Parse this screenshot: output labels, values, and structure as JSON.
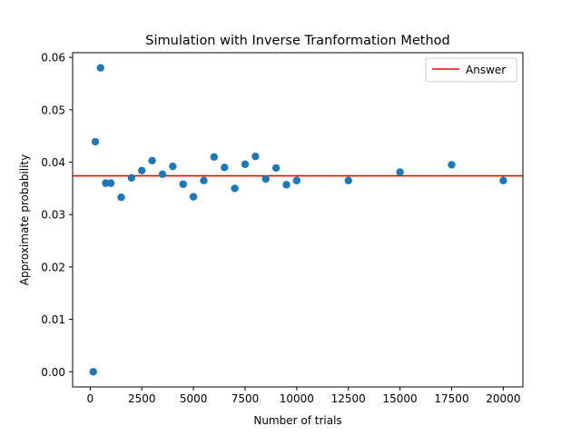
{
  "chart_data": {
    "type": "scatter",
    "title": "Simulation with Inverse Tranformation Method",
    "xlabel": "Number of trials",
    "ylabel": "Approximate probability",
    "xlim": [
      -850,
      20950
    ],
    "ylim": [
      -0.0029,
      0.0609
    ],
    "xticks": [
      0,
      2500,
      5000,
      7500,
      10000,
      12500,
      15000,
      17500,
      20000
    ],
    "xtick_labels": [
      "0",
      "2500",
      "5000",
      "7500",
      "10000",
      "12500",
      "15000",
      "17500",
      "20000"
    ],
    "yticks": [
      0.0,
      0.01,
      0.02,
      0.03,
      0.04,
      0.05,
      0.06
    ],
    "ytick_labels": [
      "0.00",
      "0.01",
      "0.02",
      "0.03",
      "0.04",
      "0.05",
      "0.06"
    ],
    "grid": false,
    "legend": {
      "position": "top-right",
      "entries": [
        {
          "label": "Answer",
          "color": "#ff0000",
          "marker": "line"
        }
      ]
    },
    "answer_line": {
      "y": 0.0374,
      "color": "#ff0000"
    },
    "marker_color": "#1f77b4",
    "points": [
      {
        "x": 150,
        "y": 0.0
      },
      {
        "x": 250,
        "y": 0.0439
      },
      {
        "x": 500,
        "y": 0.058
      },
      {
        "x": 750,
        "y": 0.036
      },
      {
        "x": 1000,
        "y": 0.036
      },
      {
        "x": 1500,
        "y": 0.0333
      },
      {
        "x": 2000,
        "y": 0.037
      },
      {
        "x": 2500,
        "y": 0.0384
      },
      {
        "x": 3000,
        "y": 0.0403
      },
      {
        "x": 3500,
        "y": 0.0377
      },
      {
        "x": 4000,
        "y": 0.0392
      },
      {
        "x": 4500,
        "y": 0.0358
      },
      {
        "x": 5000,
        "y": 0.0334
      },
      {
        "x": 5500,
        "y": 0.0365
      },
      {
        "x": 6000,
        "y": 0.041
      },
      {
        "x": 6500,
        "y": 0.039
      },
      {
        "x": 7000,
        "y": 0.035
      },
      {
        "x": 7500,
        "y": 0.0396
      },
      {
        "x": 8000,
        "y": 0.0411
      },
      {
        "x": 8500,
        "y": 0.0368
      },
      {
        "x": 9000,
        "y": 0.0389
      },
      {
        "x": 9500,
        "y": 0.0357
      },
      {
        "x": 10000,
        "y": 0.0365
      },
      {
        "x": 12500,
        "y": 0.0365
      },
      {
        "x": 15000,
        "y": 0.0381
      },
      {
        "x": 17500,
        "y": 0.0395
      },
      {
        "x": 20000,
        "y": 0.0365
      }
    ]
  }
}
